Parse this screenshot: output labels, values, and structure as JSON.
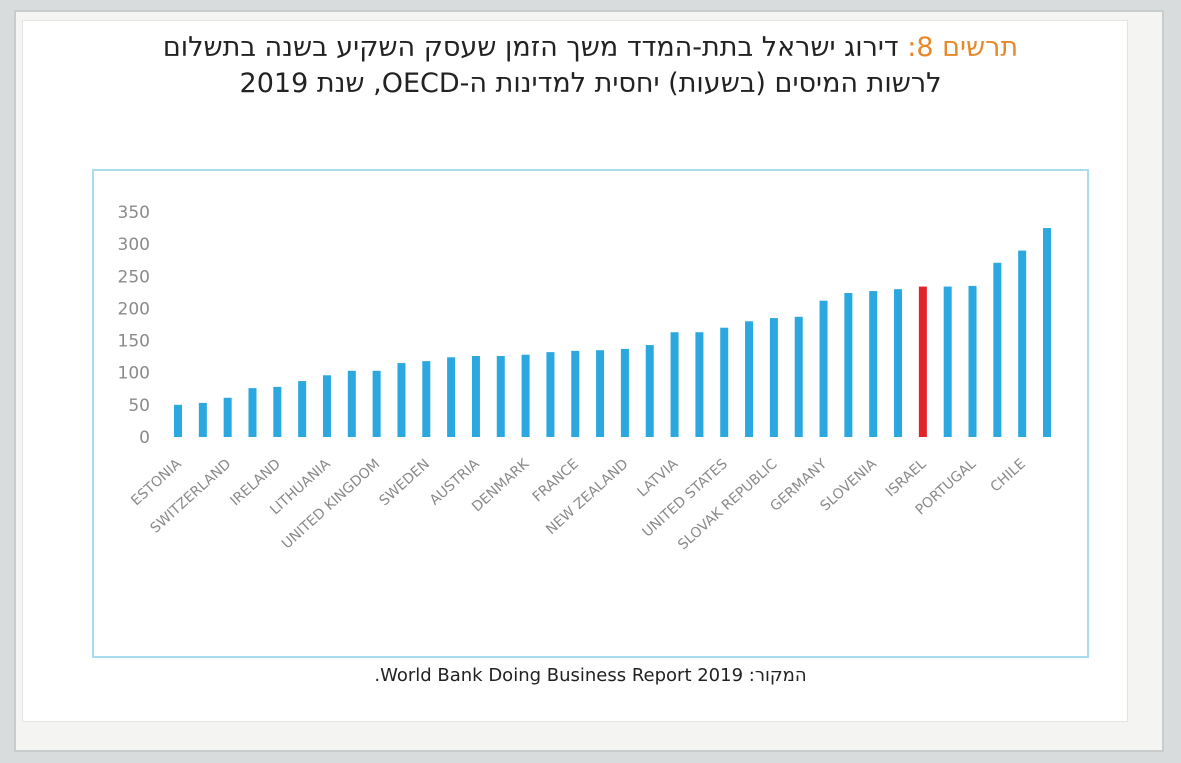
{
  "chart_data": {
    "type": "bar",
    "label": "תרשים 8:",
    "title": "דירוג ישראל בתת-המדד משך הזמן שעסק השקיע בשנה בתשלום",
    "subtitle": "לרשות המיסים (בשעות) יחסית למדינות ה-OECD, שנת 2019",
    "source": "המקור: World Bank Doing Business Report 2019.",
    "categories": [
      "ESTONIA",
      null,
      "SWITZERLAND",
      null,
      "IRELAND",
      null,
      "LITHUANIA",
      null,
      "UNITED KINGDOM",
      null,
      "SWEDEN",
      null,
      "AUSTRIA",
      null,
      "DENMARK",
      null,
      "FRANCE",
      null,
      "NEW ZEALAND",
      null,
      "LATVIA",
      null,
      "UNITED STATES",
      null,
      "SLOVAK REPUBLIC",
      null,
      "GERMANY",
      null,
      "SLOVENIA",
      null,
      "ISRAEL",
      null,
      "PORTUGAL",
      null,
      "CHILE",
      null
    ],
    "values": [
      50,
      53,
      61,
      76,
      78,
      87,
      96,
      103,
      103,
      115,
      118,
      124,
      126,
      126,
      128,
      132,
      134,
      135,
      137,
      143,
      163,
      163,
      170,
      180,
      185,
      187,
      212,
      224,
      227,
      230,
      234,
      234,
      235,
      271,
      290,
      325
    ],
    "colors": [
      "#2aa8df",
      "#2aa8df",
      "#2aa8df",
      "#2aa8df",
      "#2aa8df",
      "#2aa8df",
      "#2aa8df",
      "#2aa8df",
      "#2aa8df",
      "#2aa8df",
      "#2aa8df",
      "#2aa8df",
      "#2aa8df",
      "#2aa8df",
      "#2aa8df",
      "#2aa8df",
      "#2aa8df",
      "#2aa8df",
      "#2aa8df",
      "#2aa8df",
      "#2aa8df",
      "#2aa8df",
      "#2aa8df",
      "#2aa8df",
      "#2aa8df",
      "#2aa8df",
      "#2aa8df",
      "#2aa8df",
      "#2aa8df",
      "#2aa8df",
      "#e3242b",
      "#2aa8df",
      "#2aa8df",
      "#2aa8df",
      "#2aa8df",
      "#2aa8df"
    ],
    "ylim": [
      0,
      350
    ],
    "yticks": [
      0,
      50,
      100,
      150,
      200,
      250,
      300,
      350
    ],
    "grid": false
  }
}
